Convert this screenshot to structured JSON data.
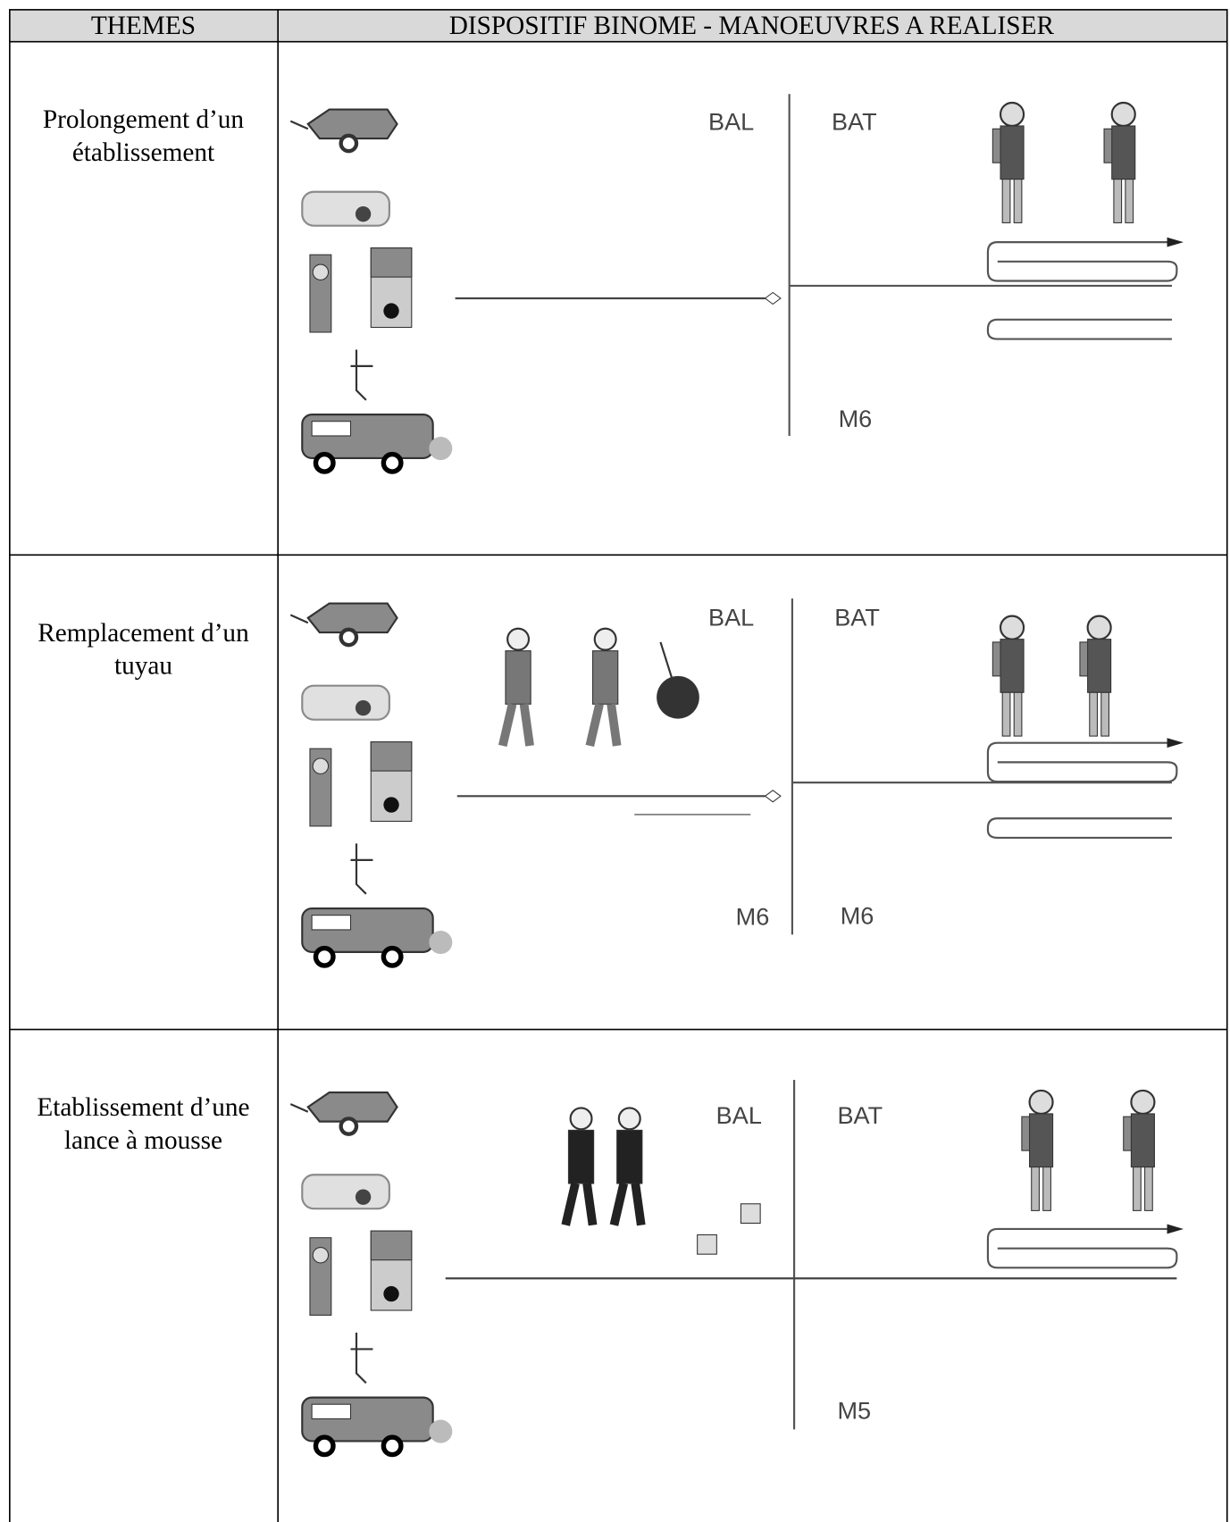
{
  "header": {
    "themes": "THEMES",
    "dispositif": "DISPOSITIF BINOME - MANOEUVRES A REALISER"
  },
  "rows": [
    {
      "theme": [
        "Prolongement d’un",
        "établissement"
      ],
      "labels": [
        "BAL",
        "BAT",
        "M6"
      ]
    },
    {
      "theme": [
        "Remplacement d’un",
        "tuyau"
      ],
      "labels": [
        "BAL",
        "BAT",
        "M6",
        "M6"
      ]
    },
    {
      "theme": [
        "Etablissement d’une",
        "lance à mousse"
      ],
      "labels": [
        "BAL",
        "BAT",
        "M5"
      ]
    }
  ]
}
